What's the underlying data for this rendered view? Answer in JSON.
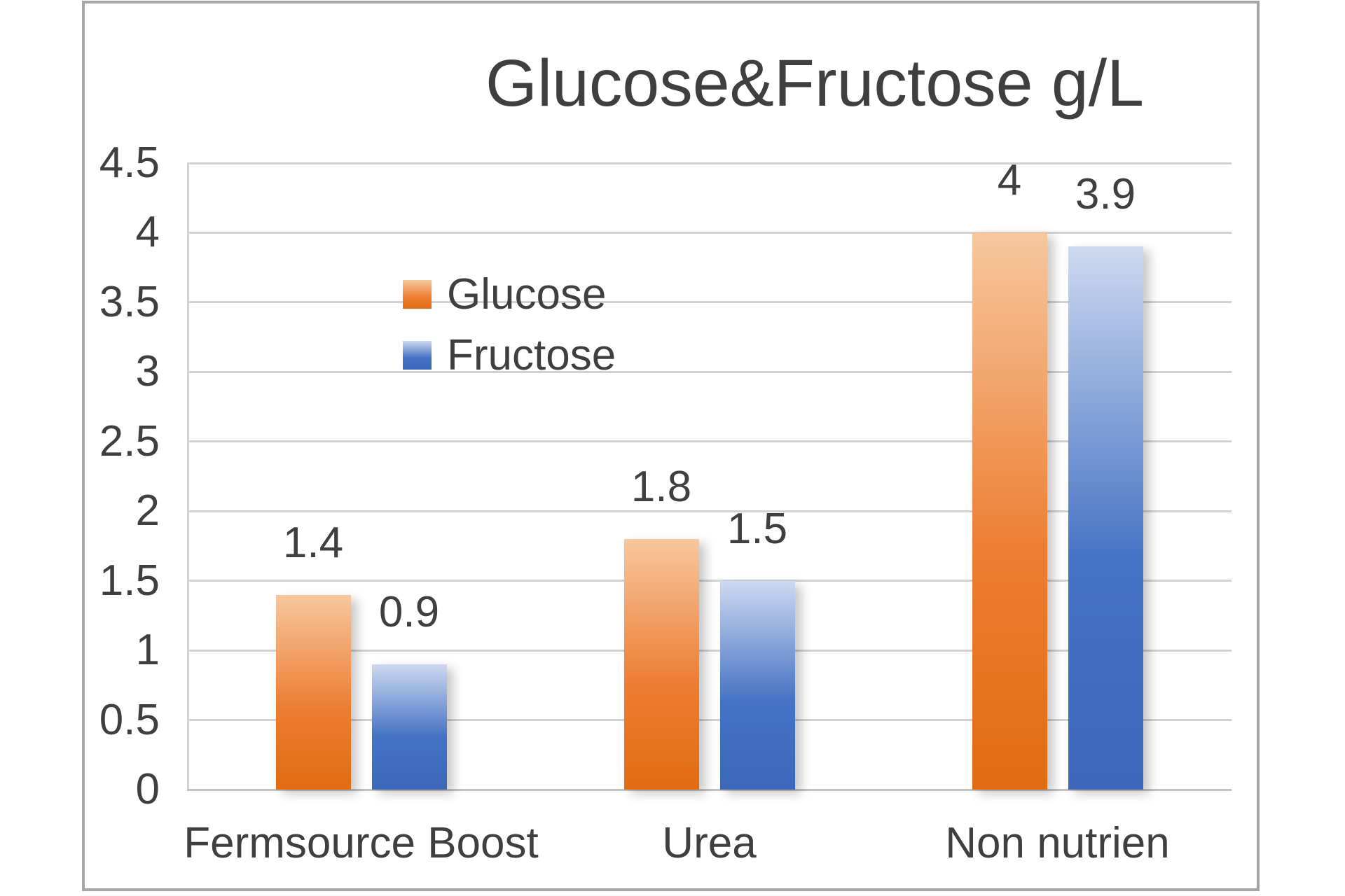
{
  "chart_data": {
    "type": "bar",
    "title": "Glucose&Fructose g/L",
    "categories": [
      "Fermsource Boost",
      "Urea",
      "Non nutrien"
    ],
    "series": [
      {
        "name": "Glucose",
        "values": [
          1.4,
          1.8,
          4
        ],
        "labels": [
          "1.4",
          "1.8",
          "4"
        ],
        "color": "#ED7D31",
        "gradient_top": "#F6C79F",
        "gradient_bottom": "#E06C13"
      },
      {
        "name": "Fructose",
        "values": [
          0.9,
          1.5,
          3.9
        ],
        "labels": [
          "0.9",
          "1.5",
          "3.9"
        ],
        "color": "#4472C4",
        "gradient_top": "#CDD9F0",
        "gradient_bottom": "#3D68BA"
      }
    ],
    "xlabel": "",
    "ylabel": "",
    "ylim": [
      0,
      4.5
    ],
    "ytick_step": 0.5,
    "yticks": [
      "4.5",
      "4",
      "3.5",
      "3",
      "2.5",
      "2",
      "1.5",
      "1",
      "0.5",
      "0"
    ],
    "grid": true,
    "legend_position": "inside-upper-left"
  },
  "colors": {
    "text": "#3F3F3F",
    "grid": "#D2D2D2",
    "axis": "#C3C3C3",
    "frame": "#A6A6A6",
    "background": "#FFFFFF"
  }
}
